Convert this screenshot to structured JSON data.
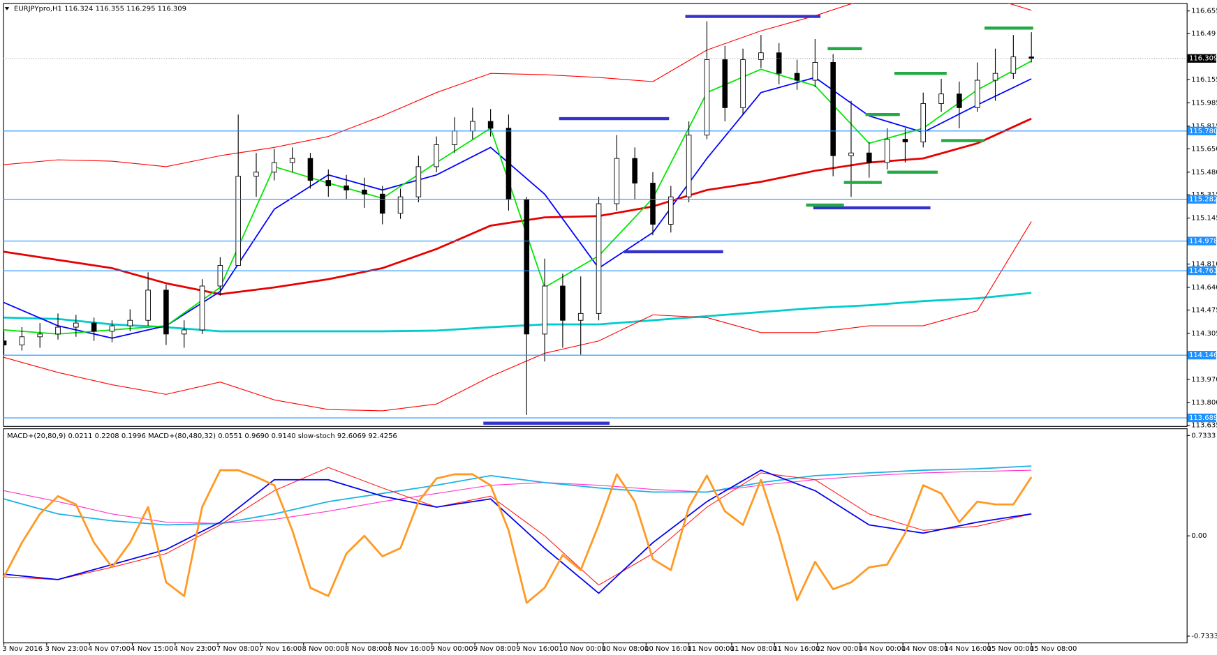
{
  "chart_data": [
    {
      "type": "candlestick",
      "title": "EURJPYpro,H1  116.324 116.355 116.295 116.309",
      "xlim": [
        0,
        57
      ],
      "ylim": [
        113.635,
        116.706
      ],
      "yticks": [
        116.655,
        116.49,
        116.155,
        115.985,
        {
          "value": 115.815,
          "label": "115.815"
        },
        {
          "value": 115.65,
          "label": "115.650"
        },
        {
          "value": 115.48,
          "label": "115.480"
        },
        115.315,
        115.145,
        {
          "value": 114.81,
          "label": "114.810"
        },
        {
          "value": 114.64,
          "label": "114.640"
        },
        114.475,
        114.305,
        {
          "value": 113.97,
          "label": "113.970"
        },
        {
          "value": 113.8,
          "label": "113.800"
        },
        113.635
      ],
      "xticks": [
        {
          "value": 0,
          "label": "3 Nov 2016"
        },
        {
          "value": 2.375,
          "label": "3 Nov 23:00"
        },
        {
          "value": 4.75,
          "label": "4 Nov 07:00"
        },
        {
          "value": 7.125,
          "label": "4 Nov 15:00"
        },
        {
          "value": 9.5,
          "label": "4 Nov 23:00"
        },
        {
          "value": 11.875,
          "label": "7 Nov 08:00"
        },
        {
          "value": 14.25,
          "label": "7 Nov 16:00"
        },
        {
          "value": 16.625,
          "label": "8 Nov 00:00"
        },
        {
          "value": 19,
          "label": "8 Nov 08:00"
        },
        {
          "value": 21.375,
          "label": "8 Nov 16:00"
        },
        {
          "value": 23.75,
          "label": "9 Nov 00:00"
        },
        {
          "value": 26.125,
          "label": "9 Nov 08:00"
        },
        {
          "value": 28.5,
          "label": "9 Nov 16:00"
        },
        {
          "value": 30.875,
          "label": "10 Nov 00:00"
        },
        {
          "value": 33.25,
          "label": "10 Nov 08:00"
        },
        {
          "value": 35.625,
          "label": "10 Nov 16:00"
        },
        {
          "value": 38,
          "label": "11 Nov 00:00"
        },
        {
          "value": 40.375,
          "label": "11 Nov 08:00"
        },
        {
          "value": 42.75,
          "label": "11 Nov 16:00"
        },
        {
          "value": 45.125,
          "label": "12 Nov 00:00"
        },
        {
          "value": 47.5,
          "label": "14 Nov 00:00"
        },
        {
          "value": 49.875,
          "label": "14 Nov 08:00"
        },
        {
          "value": 52.25,
          "label": "14 Nov 16:00"
        },
        {
          "value": 54.625,
          "label": "15 Nov 00:00"
        },
        {
          "value": 57,
          "label": "15 Nov 08:00"
        }
      ],
      "open": [
        114.25,
        114.22,
        114.28,
        114.3,
        114.35,
        114.38,
        114.32,
        114.36,
        114.4,
        114.62,
        114.3,
        114.33,
        114.65,
        114.8,
        115.45,
        115.48,
        115.55,
        115.58,
        115.42,
        115.38,
        115.35,
        115.32,
        115.18,
        115.3,
        115.52,
        115.68,
        115.78,
        115.85,
        115.8,
        115.28,
        114.3,
        114.65,
        114.4,
        114.45,
        115.25,
        115.58,
        115.4,
        115.1,
        115.3,
        115.75,
        116.3,
        115.95,
        116.3,
        116.35,
        116.2,
        116.15,
        116.28,
        115.6,
        115.62,
        115.55,
        115.72,
        115.7,
        115.98,
        116.05,
        115.95,
        116.15,
        116.2,
        116.32
      ],
      "high": [
        114.32,
        114.35,
        114.38,
        114.45,
        114.44,
        114.42,
        114.4,
        114.48,
        114.75,
        114.66,
        114.4,
        114.7,
        114.86,
        115.9,
        115.62,
        115.65,
        115.66,
        115.62,
        115.5,
        115.46,
        115.44,
        115.38,
        115.36,
        115.6,
        115.74,
        115.88,
        115.95,
        115.94,
        115.9,
        115.3,
        114.85,
        114.74,
        114.72,
        115.3,
        115.75,
        115.66,
        115.48,
        115.38,
        115.85,
        116.58,
        116.4,
        116.38,
        116.48,
        116.42,
        116.3,
        116.45,
        116.34,
        116.0,
        115.7,
        115.8,
        115.8,
        116.06,
        116.16,
        116.14,
        116.28,
        116.38,
        116.48,
        116.5
      ],
      "low": [
        114.15,
        114.18,
        114.2,
        114.26,
        114.28,
        114.25,
        114.24,
        114.32,
        114.36,
        114.22,
        114.2,
        114.3,
        114.58,
        114.8,
        115.3,
        115.42,
        115.48,
        115.36,
        115.3,
        115.28,
        115.22,
        115.1,
        115.14,
        115.26,
        115.48,
        115.62,
        115.72,
        115.74,
        115.2,
        113.71,
        114.1,
        114.2,
        114.15,
        114.4,
        115.2,
        115.28,
        115.02,
        115.04,
        115.26,
        115.72,
        115.85,
        115.9,
        116.24,
        116.12,
        116.08,
        116.1,
        115.45,
        115.3,
        115.44,
        115.5,
        115.55,
        115.66,
        115.92,
        115.8,
        115.92,
        116.0,
        116.16,
        116.28
      ],
      "close": [
        114.22,
        114.28,
        114.3,
        114.35,
        114.38,
        114.32,
        114.36,
        114.4,
        114.62,
        114.3,
        114.33,
        114.65,
        114.8,
        115.45,
        115.48,
        115.55,
        115.58,
        115.42,
        115.38,
        115.35,
        115.32,
        115.18,
        115.3,
        115.52,
        115.68,
        115.78,
        115.85,
        115.8,
        115.28,
        114.3,
        114.65,
        114.4,
        114.45,
        115.25,
        115.58,
        115.4,
        115.1,
        115.3,
        115.75,
        116.3,
        115.95,
        116.3,
        116.35,
        116.2,
        116.15,
        116.28,
        115.6,
        115.62,
        115.55,
        115.72,
        115.7,
        115.98,
        116.05,
        115.95,
        116.15,
        116.2,
        116.32,
        116.309
      ],
      "line_x": [
        0,
        3,
        6,
        9,
        12,
        15,
        18,
        21,
        24,
        27,
        30,
        33,
        36,
        39,
        42,
        45,
        48,
        51,
        54,
        57
      ],
      "series": [
        {
          "color": "#00cccc",
          "width": 2.5,
          "values": [
            114.42,
            114.41,
            114.37,
            114.35,
            114.32,
            114.32,
            114.32,
            114.32,
            114.325,
            114.35,
            114.37,
            114.37,
            114.4,
            114.43,
            114.46,
            114.49,
            114.51,
            114.54,
            114.56,
            114.6
          ]
        },
        {
          "color": "#ff0000",
          "width": 1,
          "values": [
            115.535,
            115.57,
            115.56,
            115.52,
            115.6,
            115.66,
            115.74,
            115.89,
            116.06,
            116.2,
            116.19,
            116.17,
            116.14,
            116.37,
            116.51,
            116.62,
            116.75,
            116.8,
            116.78,
            116.66
          ]
        },
        {
          "color": "#ff0000",
          "width": 1,
          "values": [
            114.13,
            114.02,
            113.93,
            113.86,
            113.95,
            113.82,
            113.75,
            113.74,
            113.79,
            113.99,
            114.16,
            114.25,
            114.44,
            114.42,
            114.31,
            114.31,
            114.36,
            114.36,
            114.47,
            115.12
          ]
        },
        {
          "color": "#e60000",
          "width": 2.5,
          "values": [
            114.9,
            114.84,
            114.78,
            114.67,
            114.59,
            114.64,
            114.7,
            114.78,
            114.92,
            115.09,
            115.15,
            115.16,
            115.23,
            115.35,
            115.41,
            115.49,
            115.55,
            115.58,
            115.69,
            115.87
          ]
        },
        {
          "color": "#0000ff",
          "width": 1.6,
          "values": [
            114.53,
            114.36,
            114.27,
            114.36,
            114.61,
            115.21,
            115.46,
            115.35,
            115.46,
            115.66,
            115.32,
            114.78,
            115.04,
            115.58,
            116.06,
            116.17,
            115.89,
            115.77,
            115.97,
            116.16
          ]
        },
        {
          "color": "#00e600",
          "width": 1.6,
          "values": [
            114.33,
            114.3,
            114.33,
            114.36,
            114.64,
            115.52,
            115.4,
            115.29,
            115.55,
            115.8,
            114.64,
            114.87,
            115.29,
            116.06,
            116.23,
            116.11,
            115.69,
            115.8,
            116.08,
            116.29
          ]
        }
      ],
      "levels": [
        {
          "value": 115.78,
          "label": "115.780"
        },
        115.282,
        114.978,
        114.761,
        114.146,
        113.689
      ],
      "level_color": "#1e90ff",
      "last_price": 116.309,
      "segments": [
        {
          "x0": 37.8,
          "x1": 45.3,
          "y": 116.615,
          "color": "#3333cc"
        },
        {
          "x0": 30.8,
          "x1": 36.9,
          "y": 115.87,
          "color": "#3333cc"
        },
        {
          "x0": 26.6,
          "x1": 33.6,
          "y": 113.65,
          "color": "#3333cc"
        },
        {
          "x0": 34.4,
          "x1": 39.9,
          "y": 114.9,
          "color": "#3333cc"
        },
        {
          "x0": 44.9,
          "x1": 51.4,
          "y": 115.22,
          "color": "#3333cc"
        },
        {
          "x0": 54.4,
          "x1": 57.1,
          "y": 116.53,
          "color": "#22aa44"
        },
        {
          "x0": 45.7,
          "x1": 47.6,
          "y": 116.38,
          "color": "#22aa44"
        },
        {
          "x0": 49.4,
          "x1": 52.3,
          "y": 116.2,
          "color": "#22aa44"
        },
        {
          "x0": 47.8,
          "x1": 49.7,
          "y": 115.9,
          "color": "#22aa44"
        },
        {
          "x0": 52,
          "x1": 54.4,
          "y": 115.71,
          "color": "#22aa44"
        },
        {
          "x0": 46.6,
          "x1": 48.7,
          "y": 115.405,
          "color": "#22aa44"
        },
        {
          "x0": 49,
          "x1": 51.8,
          "y": 115.48,
          "color": "#22aa44"
        },
        {
          "x0": 44.5,
          "x1": 46.6,
          "y": 115.24,
          "color": "#22aa44"
        }
      ]
    },
    {
      "type": "line",
      "title": "MACD+(20,80,9) 0.0211 0.2208 0.1996  MACD+(80,480,32) 0.0551 0.9690 0.9140  slow-stoch 92.6069 92.4256",
      "xlim": [
        0,
        57
      ],
      "ylim": [
        -0.78,
        0.78
      ],
      "yticks": [
        0.7333,
        {
          "value": 0,
          "label": "0.00"
        },
        -0.7333
      ],
      "x": [
        0,
        3,
        6,
        9,
        12,
        15,
        18,
        21,
        24,
        27,
        30,
        33,
        36,
        39,
        42,
        45,
        48,
        51,
        54,
        57
      ],
      "series": [
        {
          "color": "#ff33cc",
          "width": 1,
          "values": [
            0.33,
            0.25,
            0.16,
            0.1,
            0.09,
            0.12,
            0.18,
            0.25,
            0.31,
            0.37,
            0.39,
            0.37,
            0.34,
            0.32,
            0.37,
            0.41,
            0.44,
            0.46,
            0.47,
            0.48
          ]
        },
        {
          "color": "#1ab2e6",
          "width": 1.6,
          "values": [
            0.27,
            0.16,
            0.11,
            0.08,
            0.09,
            0.16,
            0.25,
            0.31,
            0.37,
            0.44,
            0.39,
            0.35,
            0.32,
            0.32,
            0.39,
            0.44,
            0.46,
            0.48,
            0.49,
            0.51
          ]
        },
        {
          "color": "#ff2020",
          "width": 1,
          "values": [
            -0.3,
            -0.32,
            -0.23,
            -0.13,
            0.08,
            0.33,
            0.5,
            0.35,
            0.21,
            0.29,
            0.0,
            -0.36,
            -0.13,
            0.21,
            0.46,
            0.41,
            0.16,
            0.04,
            0.07,
            0.16
          ]
        },
        {
          "color": "#0000ee",
          "width": 1.6,
          "values": [
            -0.28,
            -0.32,
            -0.21,
            -0.1,
            0.1,
            0.41,
            0.41,
            0.29,
            0.21,
            0.27,
            -0.09,
            -0.42,
            -0.05,
            0.25,
            0.48,
            0.33,
            0.08,
            0.02,
            0.1,
            0.16
          ]
        },
        {
          "color": "#ff9922",
          "width": 2.5,
          "x": [
            0,
            1,
            2,
            3,
            4,
            5,
            6,
            7,
            8,
            9,
            10,
            11,
            12,
            13,
            14,
            15,
            16,
            17,
            18,
            19,
            20,
            21,
            22,
            23,
            24,
            25,
            26,
            27,
            28,
            29,
            30,
            31,
            32,
            33,
            34,
            35,
            36,
            37,
            38,
            39,
            40,
            41,
            42,
            43,
            44,
            45,
            46,
            47,
            48,
            49,
            50,
            51,
            52,
            53,
            54,
            55,
            56,
            57
          ],
          "values": [
            -0.3,
            -0.05,
            0.16,
            0.29,
            0.23,
            -0.05,
            -0.23,
            -0.05,
            0.21,
            -0.34,
            -0.44,
            0.21,
            0.48,
            0.48,
            0.43,
            0.37,
            0.04,
            -0.38,
            -0.44,
            -0.13,
            0.0,
            -0.15,
            -0.09,
            0.25,
            0.42,
            0.45,
            0.45,
            0.37,
            0.04,
            -0.49,
            -0.38,
            -0.14,
            -0.25,
            0.08,
            0.45,
            0.25,
            -0.17,
            -0.25,
            0.21,
            0.44,
            0.18,
            0.08,
            0.41,
            0.0,
            -0.47,
            -0.19,
            -0.39,
            -0.34,
            -0.23,
            -0.21,
            0.02,
            0.37,
            0.31,
            0.1,
            0.25,
            0.23,
            0.23,
            0.43
          ]
        }
      ]
    }
  ]
}
